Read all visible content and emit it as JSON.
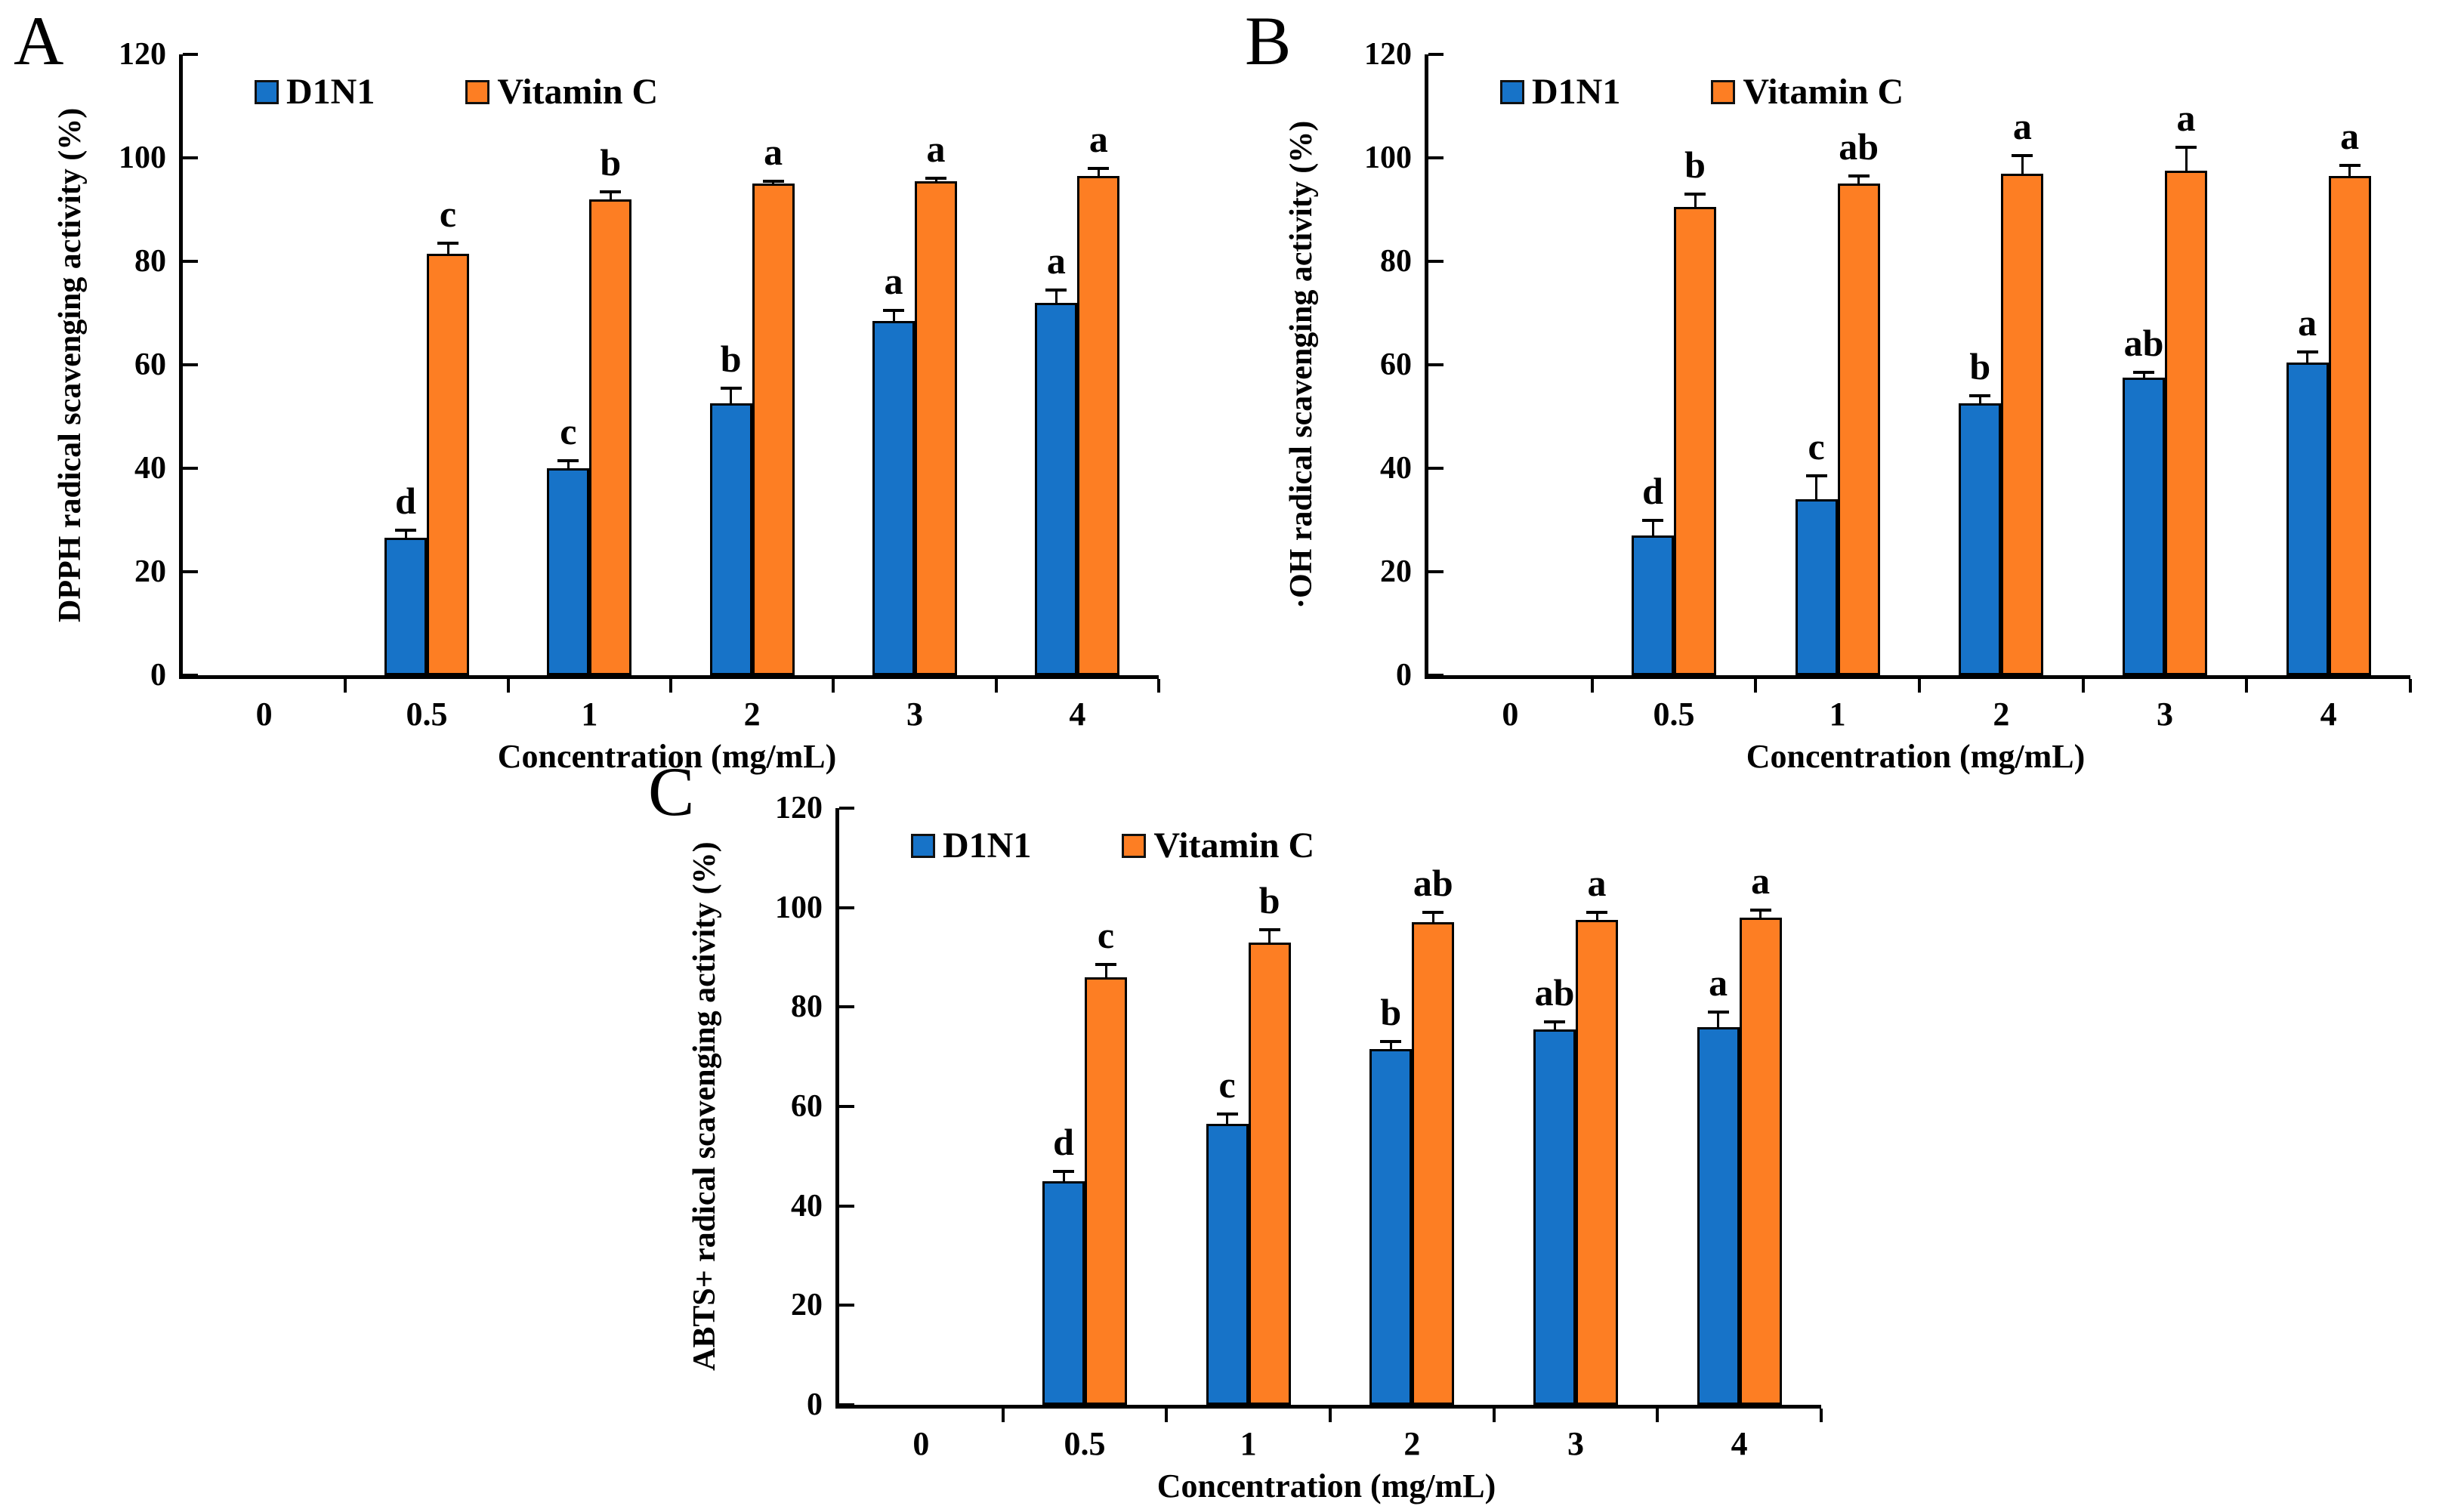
{
  "figure": {
    "x_axis_title": "Concentration (mg/mL)",
    "accent_blue": "#1773C8",
    "accent_orange": "#FD7E23"
  },
  "chart_data": [
    {
      "panel": "A",
      "type": "bar",
      "title": "",
      "ylabel": "DPPH radical scavenging activity (%)",
      "xlabel": "Concentration (mg/mL)",
      "categories": [
        "0",
        "0.5",
        "1",
        "2",
        "3",
        "4"
      ],
      "ylim": [
        0,
        120
      ],
      "ytick_step": 20,
      "grid": false,
      "legend_position": "top-inside",
      "series": [
        {
          "name": "D1N1",
          "color": "#1773C8",
          "values": [
            0,
            26.5,
            40,
            52.5,
            68.5,
            72
          ],
          "errors": [
            0,
            1.5,
            1.5,
            3,
            2,
            2.5
          ],
          "letters": [
            "",
            "d",
            "c",
            "b",
            "a",
            "a"
          ]
        },
        {
          "name": "Vitamin C",
          "color": "#FD7E23",
          "values": [
            0,
            81.5,
            92,
            95,
            95.5,
            96.5
          ],
          "errors": [
            0,
            2,
            1.5,
            0.5,
            0.5,
            1.5
          ],
          "letters": [
            "",
            "c",
            "b",
            "a",
            "a",
            "a"
          ]
        }
      ]
    },
    {
      "panel": "B",
      "type": "bar",
      "title": "",
      "ylabel": "·OH radical scavenging activity (%)",
      "xlabel": "Concentration (mg/mL)",
      "categories": [
        "0",
        "0.5",
        "1",
        "2",
        "3",
        "4"
      ],
      "ylim": [
        0,
        120
      ],
      "ytick_step": 20,
      "grid": false,
      "legend_position": "top-inside",
      "series": [
        {
          "name": "D1N1",
          "color": "#1773C8",
          "values": [
            0,
            27,
            34,
            52.5,
            57.5,
            60.5
          ],
          "errors": [
            0,
            3,
            4.5,
            1.5,
            1,
            2
          ],
          "letters": [
            "",
            "d",
            "c",
            "b",
            "ab",
            "a"
          ]
        },
        {
          "name": "Vitamin C",
          "color": "#FD7E23",
          "values": [
            0,
            90.5,
            95,
            97,
            97.5,
            96.5
          ],
          "errors": [
            0,
            2.5,
            1.5,
            3.5,
            4.5,
            2
          ],
          "letters": [
            "",
            "b",
            "ab",
            "a",
            "a",
            "a"
          ]
        }
      ]
    },
    {
      "panel": "C",
      "type": "bar",
      "title": "",
      "ylabel": "ABTS+ radical scavenging activity (%)",
      "xlabel": "Concentration (mg/mL)",
      "categories": [
        "0",
        "0.5",
        "1",
        "2",
        "3",
        "4"
      ],
      "ylim": [
        0,
        120
      ],
      "ytick_step": 20,
      "grid": false,
      "legend_position": "top-inside",
      "series": [
        {
          "name": "D1N1",
          "color": "#1773C8",
          "values": [
            0,
            45,
            56.5,
            71.5,
            75.5,
            76
          ],
          "errors": [
            0,
            2,
            2,
            1.5,
            1.5,
            3
          ],
          "letters": [
            "",
            "d",
            "c",
            "b",
            "ab",
            "a"
          ]
        },
        {
          "name": "Vitamin C",
          "color": "#FD7E23",
          "values": [
            0,
            86,
            93,
            97,
            97.5,
            98
          ],
          "errors": [
            0,
            2.5,
            2.5,
            2,
            1.5,
            1.5
          ],
          "letters": [
            "",
            "c",
            "b",
            "ab",
            "a",
            "a"
          ]
        }
      ]
    }
  ]
}
